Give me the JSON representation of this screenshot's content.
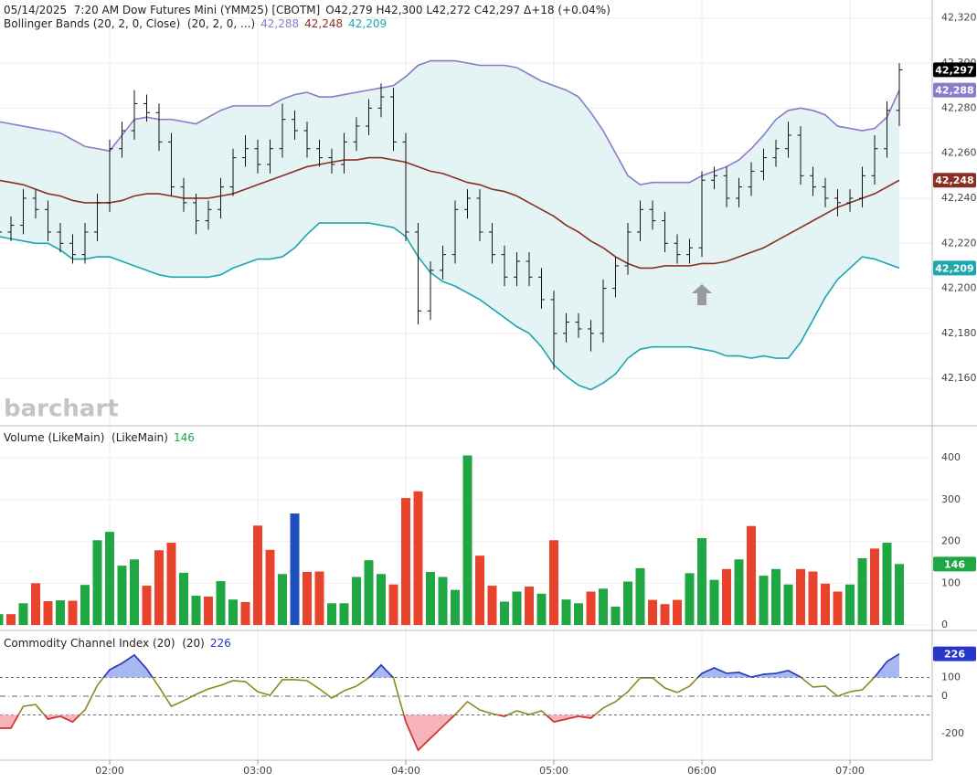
{
  "chart_data": [
    {
      "type": "ohlc",
      "title": "05/14/2025  7:20 AM Dow Futures Mini (YMM25) [CBOTM]",
      "quote": "O42,279 H42,300 L42,272 C42,297 Δ+18 (+0.04%)",
      "watermark": "barchart",
      "color": "#111111",
      "open": [
        42222,
        42225,
        42228,
        42240,
        42235,
        42225,
        42220,
        42215,
        42225,
        42238,
        42262,
        42270,
        42282,
        42278,
        42265,
        42245,
        42238,
        42230,
        42235,
        42245,
        42258,
        42262,
        42255,
        42262,
        42275,
        42270,
        42262,
        42258,
        42255,
        42265,
        42272,
        42280,
        42285,
        42265,
        42225,
        42190,
        42208,
        42215,
        42235,
        42240,
        42225,
        42215,
        42205,
        42212,
        42205,
        42195,
        42180,
        42185,
        42182,
        42180,
        42200,
        42210,
        42225,
        42235,
        42230,
        42220,
        42215,
        42218,
        42248,
        42250,
        42240,
        42245,
        42252,
        42258,
        42262,
        42268,
        42250,
        42245,
        42240,
        42238,
        42240,
        42250,
        42262,
        42279
      ],
      "high": [
        42229,
        42232,
        42244,
        42244,
        42239,
        42229,
        42224,
        42229,
        42242,
        42266,
        42274,
        42288,
        42286,
        42282,
        42269,
        42249,
        42242,
        42239,
        42249,
        42262,
        42268,
        42266,
        42266,
        42282,
        42279,
        42274,
        42266,
        42262,
        42269,
        42276,
        42284,
        42291,
        42289,
        42269,
        42229,
        42212,
        42219,
        42239,
        42244,
        42244,
        42229,
        42219,
        42216,
        42216,
        42209,
        42199,
        42189,
        42189,
        42186,
        42204,
        42214,
        42229,
        42239,
        42239,
        42234,
        42224,
        42222,
        42252,
        42254,
        42254,
        42249,
        42256,
        42262,
        42266,
        42274,
        42272,
        42254,
        42249,
        42244,
        42244,
        42254,
        42268,
        42283,
        42300
      ],
      "low": [
        42218,
        42221,
        42224,
        42231,
        42221,
        42216,
        42211,
        42211,
        42221,
        42234,
        42258,
        42266,
        42274,
        42261,
        42241,
        42234,
        42224,
        42226,
        42231,
        42241,
        42254,
        42251,
        42251,
        42258,
        42266,
        42258,
        42254,
        42251,
        42251,
        42261,
        42268,
        42276,
        42261,
        42221,
        42184,
        42186,
        42204,
        42211,
        42231,
        42221,
        42211,
        42201,
        42201,
        42201,
        42191,
        42164,
        42176,
        42178,
        42172,
        42176,
        42196,
        42206,
        42221,
        42226,
        42216,
        42211,
        42211,
        42214,
        42244,
        42236,
        42236,
        42241,
        42248,
        42254,
        42258,
        42246,
        42241,
        42236,
        42232,
        42234,
        42236,
        42246,
        42258,
        42272
      ],
      "close": [
        42225,
        42228,
        42240,
        42235,
        42225,
        42220,
        42215,
        42225,
        42238,
        42262,
        42270,
        42282,
        42278,
        42265,
        42245,
        42238,
        42230,
        42235,
        42245,
        42258,
        42262,
        42255,
        42262,
        42275,
        42270,
        42262,
        42258,
        42255,
        42265,
        42272,
        42280,
        42285,
        42265,
        42225,
        42190,
        42208,
        42215,
        42235,
        42240,
        42225,
        42215,
        42205,
        42212,
        42205,
        42195,
        42180,
        42185,
        42182,
        42180,
        42200,
        42210,
        42225,
        42235,
        42230,
        42220,
        42215,
        42218,
        42248,
        42250,
        42240,
        42245,
        42252,
        42258,
        42262,
        42268,
        42250,
        42245,
        42240,
        42238,
        42240,
        42250,
        42262,
        42279,
        42297
      ],
      "last_label": "42,297",
      "ylim": [
        42139,
        42328
      ],
      "yticks": [
        {
          "value": 42160,
          "label": "42,160"
        },
        {
          "value": 42180,
          "label": "42,180"
        },
        {
          "value": 42200,
          "label": "42,200"
        },
        {
          "value": 42220,
          "label": "42,220"
        },
        {
          "value": 42240,
          "label": "42,240"
        },
        {
          "value": 42260,
          "label": "42,260"
        },
        {
          "value": 42280,
          "label": "42,280"
        },
        {
          "value": 42300,
          "label": "42,300"
        },
        {
          "value": 42320,
          "label": "42,320"
        }
      ],
      "grid": true,
      "indicator": {
        "name": "Bollinger Bands (20, 2, 0, Close)  (20, 2, 0, ...)",
        "fill": "#e4f3f4",
        "series": [
          {
            "color": "#8a7cc9",
            "last_label": "42,288",
            "values": [
              42274,
              42273,
              42272,
              42271,
              42270,
              42269,
              42266,
              42263,
              42262,
              42261,
              42268,
              42275,
              42276,
              42275,
              42275,
              42274,
              42273,
              42276,
              42279,
              42281,
              42281,
              42281,
              42281,
              42284,
              42286,
              42287,
              42285,
              42285,
              42286,
              42287,
              42288,
              42289,
              42290,
              42294,
              42299,
              42301,
              42301,
              42301,
              42300,
              42299,
              42299,
              42299,
              42298,
              42295,
              42292,
              42290,
              42288,
              42285,
              42278,
              42270,
              42260,
              42250,
              42246,
              42247,
              42247,
              42247,
              42247,
              42250,
              42252,
              42254,
              42257,
              42262,
              42268,
              42275,
              42279,
              42280,
              42279,
              42277,
              42272,
              42271,
              42270,
              42271,
              42276,
              42288
            ]
          },
          {
            "color": "#8b2e22",
            "last_label": "42,248",
            "values": [
              42248,
              42247,
              42246,
              42244,
              42242,
              42241,
              42239,
              42238,
              42238,
              42238,
              42239,
              42241,
              42242,
              42242,
              42241,
              42240,
              42240,
              42240,
              42241,
              42242,
              42244,
              42246,
              42248,
              42250,
              42252,
              42254,
              42255,
              42256,
              42257,
              42257,
              42258,
              42258,
              42257,
              42256,
              42254,
              42252,
              42251,
              42249,
              42247,
              42246,
              42244,
              42243,
              42241,
              42238,
              42235,
              42232,
              42228,
              42225,
              42221,
              42218,
              42214,
              42211,
              42209,
              42209,
              42210,
              42210,
              42210,
              42211,
              42211,
              42212,
              42214,
              42216,
              42218,
              42221,
              42224,
              42227,
              42230,
              42233,
              42236,
              42238,
              42240,
              42242,
              42245,
              42248
            ]
          },
          {
            "color": "#1aa7ad",
            "last_label": "42,209",
            "values": [
              42223,
              42222,
              42221,
              42220,
              42220,
              42217,
              42213,
              42213,
              42214,
              42214,
              42212,
              42210,
              42208,
              42206,
              42205,
              42205,
              42205,
              42205,
              42206,
              42209,
              42211,
              42213,
              42213,
              42214,
              42218,
              42224,
              42229,
              42229,
              42229,
              42229,
              42229,
              42228,
              42227,
              42223,
              42214,
              42207,
              42203,
              42201,
              42198,
              42195,
              42191,
              42187,
              42183,
              42180,
              42174,
              42166,
              42161,
              42157,
              42155,
              42158,
              42162,
              42169,
              42173,
              42174,
              42174,
              42174,
              42174,
              42173,
              42172,
              42170,
              42170,
              42169,
              42170,
              42169,
              42169,
              42176,
              42186,
              42196,
              42204,
              42209,
              42214,
              42213,
              42211,
              42209
            ]
          }
        ]
      }
    },
    {
      "type": "bar",
      "title": "Volume (LikeMain)  (LikeMain)",
      "values": [
        26,
        26,
        52,
        100,
        57,
        59,
        58,
        96,
        203,
        223,
        142,
        157,
        94,
        179,
        197,
        125,
        70,
        68,
        105,
        61,
        55,
        238,
        180,
        122,
        267,
        127,
        128,
        52,
        52,
        115,
        155,
        122,
        97,
        304,
        320,
        127,
        115,
        84,
        406,
        166,
        94,
        56,
        80,
        92,
        75,
        203,
        61,
        52,
        80,
        87,
        44,
        104,
        136,
        60,
        50,
        60,
        124,
        208,
        108,
        134,
        157,
        237,
        118,
        134,
        97,
        134,
        128,
        99,
        80,
        97,
        160,
        183,
        197,
        146
      ],
      "colors": [
        "#1fa744",
        "#e8432c",
        "#1fa744",
        "#e8432c",
        "#e8432c",
        "#1fa744",
        "#e8432c",
        "#1fa744",
        "#1fa744",
        "#1fa744",
        "#1fa744",
        "#1fa744",
        "#e8432c",
        "#e8432c",
        "#e8432c",
        "#1fa744",
        "#1fa744",
        "#e8432c",
        "#1fa744",
        "#1fa744",
        "#e8432c",
        "#e8432c",
        "#e8432c",
        "#1fa744",
        "#1f4fbd",
        "#e8432c",
        "#e8432c",
        "#1fa744",
        "#1fa744",
        "#1fa744",
        "#1fa744",
        "#1fa744",
        "#e8432c",
        "#e8432c",
        "#e8432c",
        "#1fa744",
        "#1fa744",
        "#1fa744",
        "#1fa744",
        "#e8432c",
        "#e8432c",
        "#1fa744",
        "#1fa744",
        "#e8432c",
        "#1fa744",
        "#e8432c",
        "#1fa744",
        "#1fa744",
        "#e8432c",
        "#1fa744",
        "#1fa744",
        "#1fa744",
        "#1fa744",
        "#e8432c",
        "#e8432c",
        "#e8432c",
        "#1fa744",
        "#1fa744",
        "#1fa744",
        "#e8432c",
        "#1fa744",
        "#e8432c",
        "#1fa744",
        "#1fa744",
        "#1fa744",
        "#e8432c",
        "#e8432c",
        "#e8432c",
        "#e8432c",
        "#1fa744",
        "#1fa744",
        "#e8432c",
        "#1fa744",
        "#1fa744"
      ],
      "ylim": [
        -13,
        477
      ],
      "yticks": [
        0,
        100,
        200,
        300,
        400
      ],
      "grid": true
    },
    {
      "type": "line",
      "title": "Commodity Channel Index (20)  (20)",
      "values": [
        -170,
        -170,
        -54,
        -44,
        -122,
        -107,
        -137,
        -73,
        58,
        141,
        176,
        220,
        146,
        49,
        -54,
        -24,
        10,
        39,
        58,
        83,
        78,
        24,
        5,
        88,
        88,
        83,
        39,
        -10,
        29,
        54,
        98,
        166,
        98,
        -137,
        -288,
        -224,
        -161,
        -98,
        -29,
        -73,
        -93,
        -107,
        -78,
        -98,
        -78,
        -137,
        -122,
        -107,
        -117,
        -63,
        -29,
        24,
        98,
        98,
        44,
        20,
        54,
        122,
        151,
        122,
        127,
        102,
        117,
        122,
        137,
        102,
        49,
        54,
        0,
        24,
        34,
        102,
        185,
        226
      ],
      "color": "#8a8a1c",
      "high_color": "#2636c9",
      "low_color": "#d6303a",
      "high_fill": "#a9b8f2",
      "low_fill": "#f6b3ba",
      "levels": [
        100,
        0,
        -100
      ],
      "ylim": [
        -341,
        351
      ],
      "yticks": [
        -200,
        0,
        100
      ],
      "categories": [
        null,
        null,
        null,
        null,
        null,
        null,
        null,
        null,
        null,
        "02:00",
        null,
        null,
        null,
        null,
        null,
        null,
        null,
        null,
        null,
        null,
        null,
        "03:00",
        null,
        null,
        null,
        null,
        null,
        null,
        null,
        null,
        null,
        null,
        null,
        "04:00",
        null,
        null,
        null,
        null,
        null,
        null,
        null,
        null,
        null,
        null,
        null,
        "05:00",
        null,
        null,
        null,
        null,
        null,
        null,
        null,
        null,
        null,
        null,
        null,
        "06:00",
        null,
        null,
        null,
        null,
        null,
        null,
        null,
        null,
        null,
        null,
        null,
        "07:00",
        null,
        null,
        null,
        null
      ]
    }
  ]
}
